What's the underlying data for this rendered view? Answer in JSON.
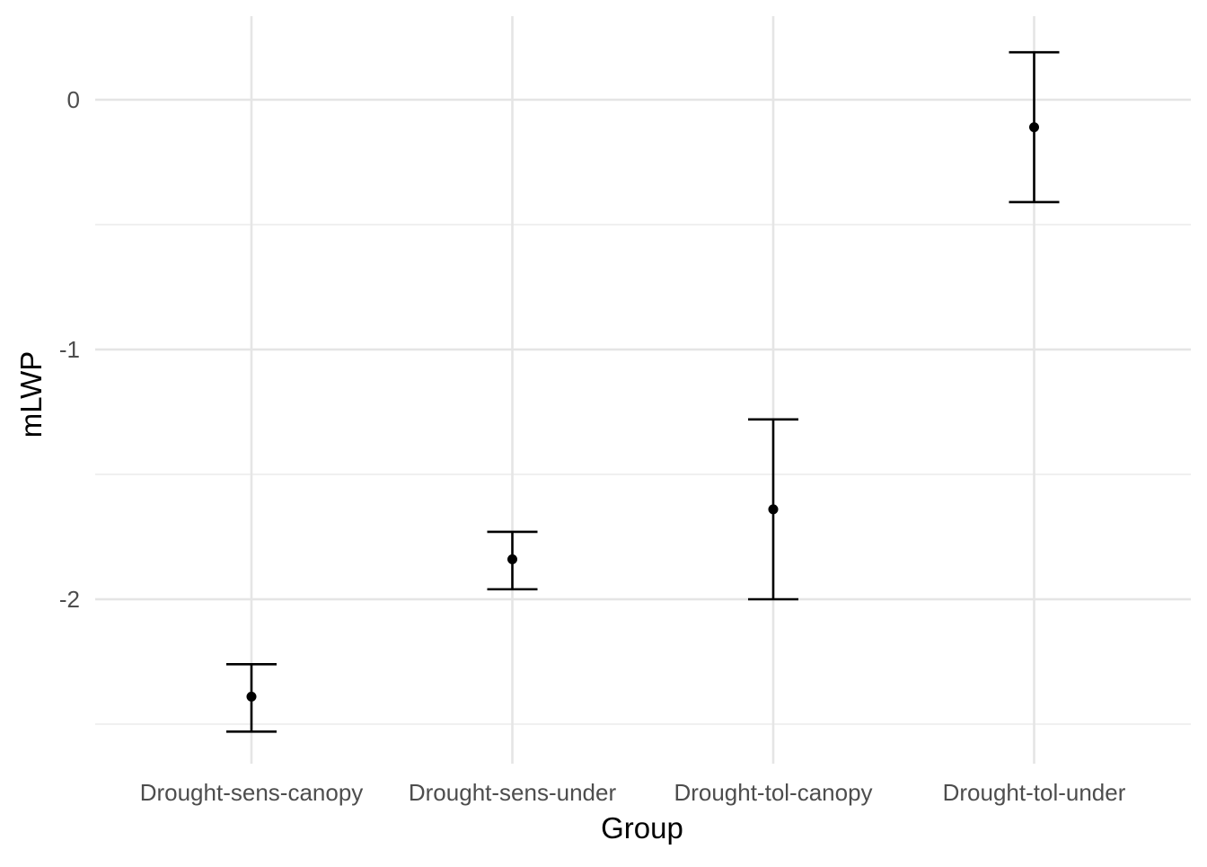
{
  "chart_data": {
    "type": "scatter",
    "subtype": "point-errorbar",
    "title": "",
    "xlabel": "Group",
    "ylabel": "mLWP",
    "categories": [
      "Drought-sens-canopy",
      "Drought-sens-under",
      "Drought-tol-canopy",
      "Drought-tol-under"
    ],
    "series": [
      {
        "points": [
          {
            "x": "Drought-sens-canopy",
            "y": -2.39,
            "ymin": -2.53,
            "ymax": -2.26
          },
          {
            "x": "Drought-sens-under",
            "y": -1.84,
            "ymin": -1.96,
            "ymax": -1.73
          },
          {
            "x": "Drought-tol-canopy",
            "y": -1.64,
            "ymin": -2.0,
            "ymax": -1.28
          },
          {
            "x": "Drought-tol-under",
            "y": -0.11,
            "ymin": -0.41,
            "ymax": 0.19
          }
        ]
      }
    ],
    "ylim": [
      -2.66,
      0.33
    ],
    "yticks": [
      0,
      -1,
      -2
    ],
    "ytick_labels": [
      "0",
      "-1",
      "-2"
    ],
    "grid": true,
    "theme": "minimal",
    "colors": {
      "point": "#000000",
      "errorbar": "#000000",
      "grid": "#e5e5e5",
      "tick_label": "#4d4d4d"
    }
  }
}
